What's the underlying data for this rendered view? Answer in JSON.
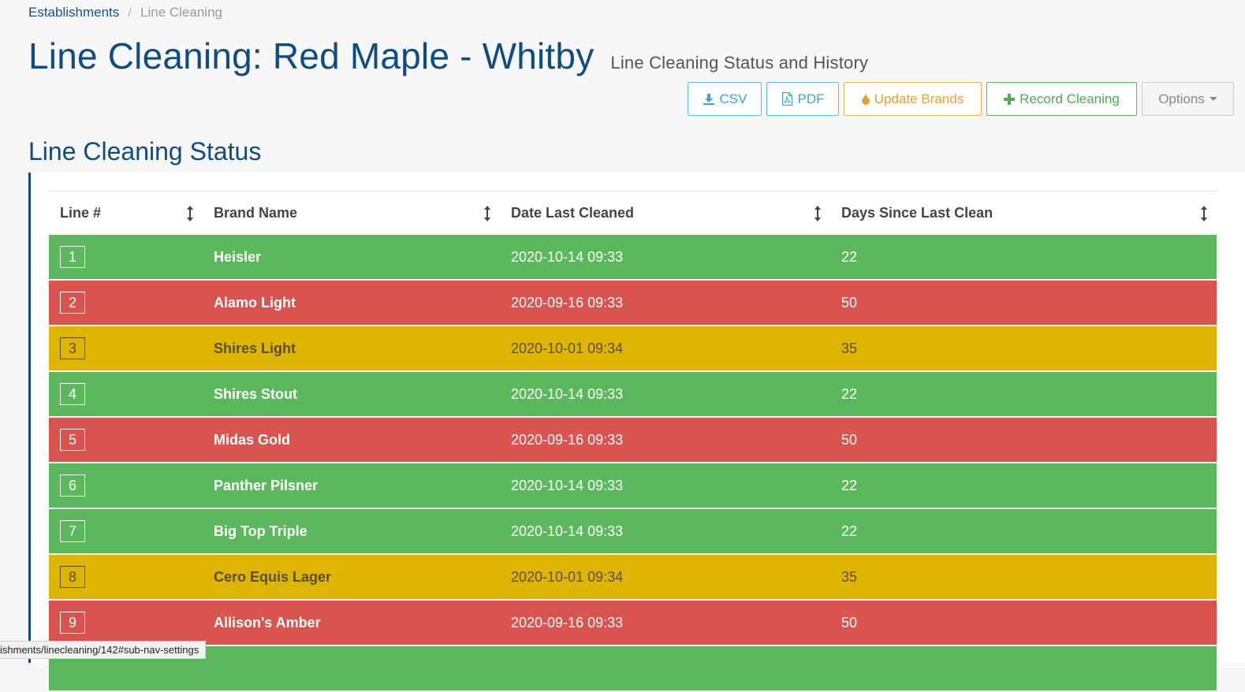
{
  "breadcrumb": {
    "home": "Establishments",
    "separator": "/",
    "current": "Line Cleaning"
  },
  "header": {
    "title": "Line Cleaning: Red Maple - Whitby",
    "subtitle": "Line Cleaning Status and History"
  },
  "toolbar": {
    "csv_label": "CSV",
    "pdf_label": "PDF",
    "update_brands_label": "Update Brands",
    "record_cleaning_label": "Record Cleaning",
    "options_label": "Options"
  },
  "section": {
    "title": "Line Cleaning Status"
  },
  "table": {
    "columns": [
      "Line #",
      "Brand Name",
      "Date Last Cleaned",
      "Days Since Last Clean"
    ],
    "rows": [
      {
        "line": "1",
        "brand": "Heisler",
        "date": "2020-10-14 09:33",
        "days": "22",
        "status": "good"
      },
      {
        "line": "2",
        "brand": "Alamo Light",
        "date": "2020-09-16 09:33",
        "days": "50",
        "status": "bad"
      },
      {
        "line": "3",
        "brand": "Shires Light",
        "date": "2020-10-01 09:34",
        "days": "35",
        "status": "warn"
      },
      {
        "line": "4",
        "brand": "Shires Stout",
        "date": "2020-10-14 09:33",
        "days": "22",
        "status": "good"
      },
      {
        "line": "5",
        "brand": "Midas Gold",
        "date": "2020-09-16 09:33",
        "days": "50",
        "status": "bad"
      },
      {
        "line": "6",
        "brand": "Panther Pilsner",
        "date": "2020-10-14 09:33",
        "days": "22",
        "status": "good"
      },
      {
        "line": "7",
        "brand": "Big Top Triple",
        "date": "2020-10-14 09:33",
        "days": "22",
        "status": "good"
      },
      {
        "line": "8",
        "brand": "Cero Equis Lager",
        "date": "2020-10-01 09:34",
        "days": "35",
        "status": "warn"
      },
      {
        "line": "9",
        "brand": "Allison's Amber",
        "date": "2020-09-16 09:33",
        "days": "50",
        "status": "bad"
      },
      {
        "line": "",
        "brand": "",
        "date": "",
        "days": "",
        "status": "good"
      }
    ]
  },
  "status_bar": {
    "url": "ishments/linecleaning/142#sub-nav-settings"
  },
  "colors": {
    "primary": "#0f4c81",
    "good": "#5cb85c",
    "bad": "#d9534f",
    "warn": "#dfb505",
    "info": "#5bc0de"
  },
  "icons": {
    "csv": "download-icon",
    "pdf": "file-pdf-icon",
    "update_brands": "droplet-icon",
    "record_cleaning": "plus-icon",
    "options": "caret-down-icon",
    "sort": "sort-icon"
  }
}
